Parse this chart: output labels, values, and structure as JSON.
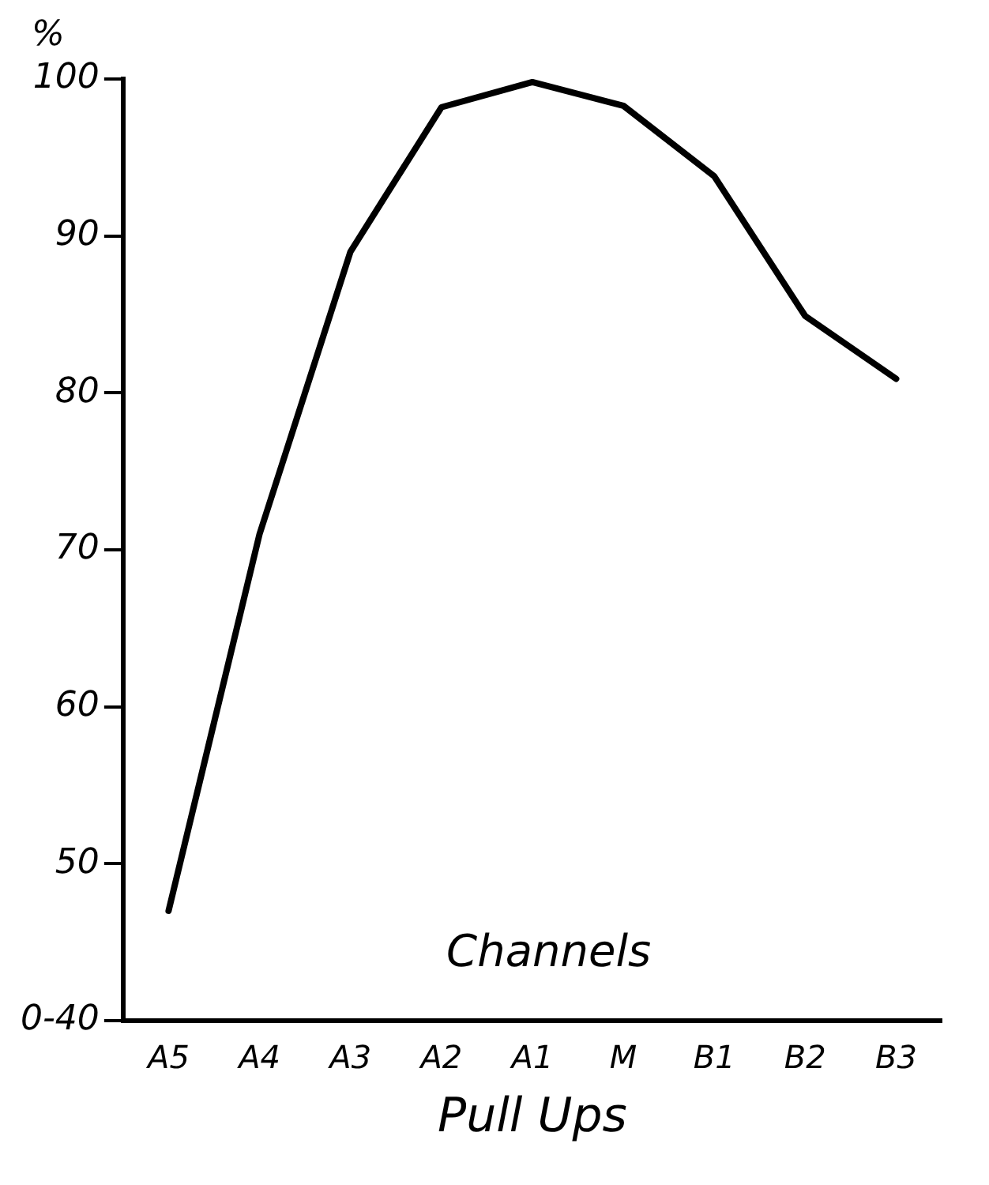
{
  "chart_data": {
    "type": "line",
    "xlabel": "Pull Ups",
    "ylabel": "%",
    "annotations": [
      "Channels"
    ],
    "categories": [
      "A5",
      "A4",
      "A3",
      "A2",
      "A1",
      "M",
      "B1",
      "B2",
      "B3"
    ],
    "series": [
      {
        "color": "#000000",
        "values": [
          47,
          71,
          89,
          98.2,
          99.8,
          98.3,
          93.8,
          84.9,
          80.9
        ]
      }
    ],
    "ylim": [
      40,
      100
    ],
    "yticks": [
      {
        "value": 40,
        "label": "0-40"
      },
      50,
      60,
      70,
      80,
      90,
      100
    ],
    "grid": false,
    "legend": false,
    "marker": "none",
    "line_style": "solid"
  }
}
